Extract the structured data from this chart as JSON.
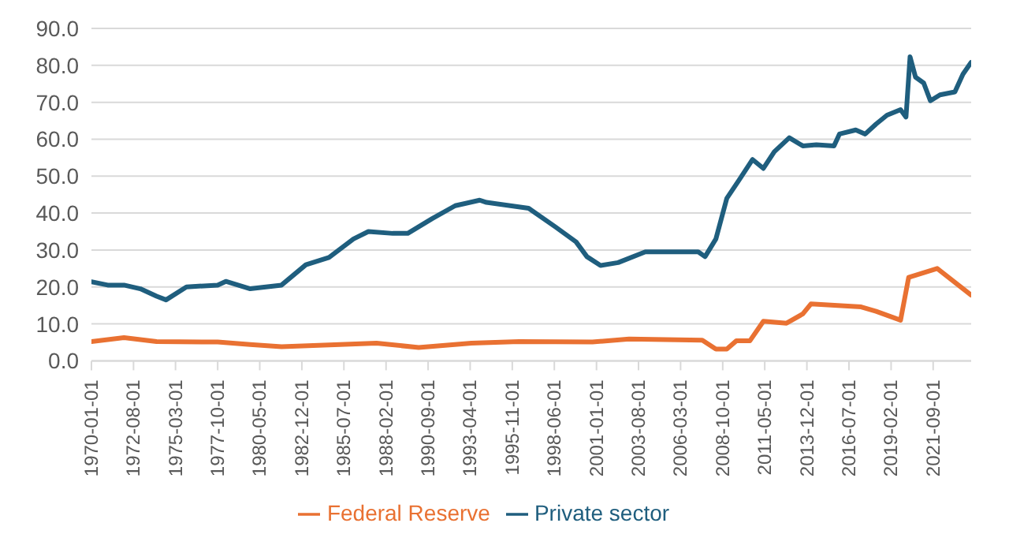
{
  "chart_data": {
    "type": "line",
    "xlim": [
      "1970-01-01",
      "2024-01-01"
    ],
    "xticks": [
      "1970-01-01",
      "1972-08-01",
      "1975-03-01",
      "1977-10-01",
      "1980-05-01",
      "1982-12-01",
      "1985-07-01",
      "1988-02-01",
      "1990-09-01",
      "1993-04-01",
      "1995-11-01",
      "1998-06-01",
      "2001-01-01",
      "2003-08-01",
      "2006-03-01",
      "2008-10-01",
      "2011-05-01",
      "2013-12-01",
      "2016-07-01",
      "2019-02-01",
      "2021-09-01"
    ],
    "ylim": [
      0,
      90
    ],
    "yticks": [
      {
        "value": 0,
        "label": "0.0"
      },
      {
        "value": 10,
        "label": "10.0"
      },
      {
        "value": 20,
        "label": "20.0"
      },
      {
        "value": 30,
        "label": "30.0"
      },
      {
        "value": 40,
        "label": "40.0"
      },
      {
        "value": 50,
        "label": "50.0"
      },
      {
        "value": 60,
        "label": "60.0"
      },
      {
        "value": 70,
        "label": "70.0"
      },
      {
        "value": 80,
        "label": "80.0"
      },
      {
        "value": 90,
        "label": "90.0"
      }
    ],
    "grid": "y",
    "legend": "bottom",
    "marker": "none",
    "line_style": "solid",
    "series": [
      {
        "name": "Private sector",
        "color": "#1f5e7e",
        "x": [
          "1970-01",
          "1971-01",
          "1972-01",
          "1973-01",
          "1974-01",
          "1974-08",
          "1975-11",
          "1977-10",
          "1978-04",
          "1979-10",
          "1981-09",
          "1983-03",
          "1984-08",
          "1986-02",
          "1987-01",
          "1988-07",
          "1989-06",
          "1990-12",
          "1992-05",
          "1993-11",
          "1994-04",
          "1996-11",
          "1998-07",
          "1999-10",
          "2000-06",
          "2001-04",
          "2002-05",
          "2004-01",
          "2005-08",
          "2007-04",
          "2007-09",
          "2008-05",
          "2009-01",
          "2009-10",
          "2010-08",
          "2011-04",
          "2011-12",
          "2012-11",
          "2013-09",
          "2014-07",
          "2015-08",
          "2015-12",
          "2016-12",
          "2017-07",
          "2018-03",
          "2018-11",
          "2019-09",
          "2020-01",
          "2020-04",
          "2020-08",
          "2021-02",
          "2021-07",
          "2022-02",
          "2023-01",
          "2023-07",
          "2024-01"
        ],
        "values": [
          21.4,
          20.5,
          20.5,
          19.5,
          17.5,
          16.5,
          20,
          20.5,
          21.5,
          19.5,
          20.5,
          26,
          28,
          33,
          35,
          34.5,
          34.5,
          38.5,
          42,
          43.5,
          42.9,
          41.3,
          36.2,
          32.2,
          28.2,
          25.8,
          26.6,
          29.5,
          29.5,
          29.5,
          28.2,
          33,
          44,
          48.9,
          54.5,
          52.1,
          56.6,
          60.4,
          58.2,
          58.5,
          58.2,
          61.4,
          62.5,
          61.4,
          64.1,
          66.5,
          68,
          66,
          82.3,
          76.8,
          75.2,
          70.4,
          72,
          72.8,
          77.6,
          80.8
        ]
      },
      {
        "name": "Federal Reserve",
        "color": "#e97132",
        "x": [
          "1970-01",
          "1972-01",
          "1974-01",
          "1977-10",
          "1979-10",
          "1981-09",
          "1985-04",
          "1987-07",
          "1990-02",
          "1993-05",
          "1996-04",
          "2000-10",
          "2003-01",
          "2007-07",
          "2008-05",
          "2009-01",
          "2009-08",
          "2010-06",
          "2011-04",
          "2012-09",
          "2013-09",
          "2014-03",
          "2017-04",
          "2018-03",
          "2019-09",
          "2020-03",
          "2021-12",
          "2024-01"
        ],
        "values": [
          5.2,
          6.3,
          5.2,
          5.1,
          4.4,
          3.8,
          4.4,
          4.8,
          3.6,
          4.8,
          5.2,
          5.1,
          5.9,
          5.6,
          3.2,
          3.2,
          5.4,
          5.4,
          10.7,
          10.2,
          12.7,
          15.4,
          14.6,
          13.4,
          11,
          22.6,
          25,
          17.8
        ]
      }
    ]
  }
}
